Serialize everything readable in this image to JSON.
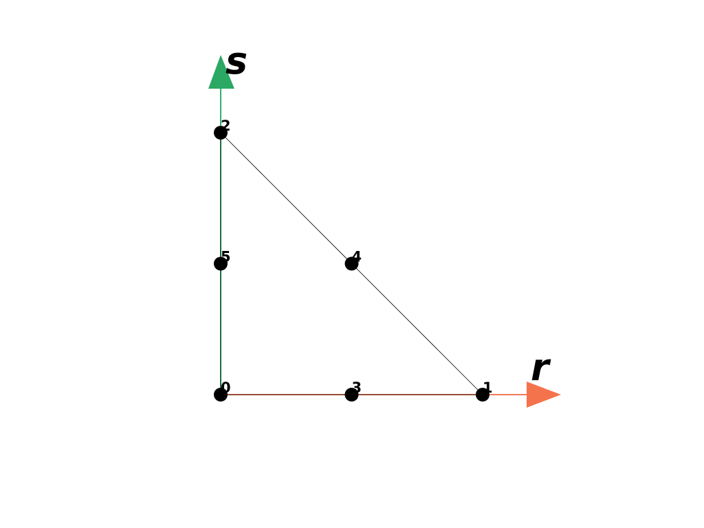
{
  "diagram": {
    "type": "reference-triangle",
    "axes": {
      "r": {
        "label": "r",
        "color": "#f07a55",
        "tip_color": "#f5734c"
      },
      "s": {
        "label": "s",
        "color": "#2db36a",
        "tip_color": "#2aa864"
      }
    },
    "edge_color": "#000000",
    "node_color": "#000000",
    "nodes": [
      {
        "id": "0",
        "r": 0.0,
        "s": 0.0
      },
      {
        "id": "1",
        "r": 1.0,
        "s": 0.0
      },
      {
        "id": "2",
        "r": 0.0,
        "s": 1.0
      },
      {
        "id": "3",
        "r": 0.5,
        "s": 0.0
      },
      {
        "id": "4",
        "r": 0.5,
        "s": 0.5
      },
      {
        "id": "5",
        "r": 0.0,
        "s": 0.5
      }
    ],
    "edges": [
      [
        "0",
        "1"
      ],
      [
        "1",
        "2"
      ],
      [
        "2",
        "0"
      ]
    ]
  }
}
